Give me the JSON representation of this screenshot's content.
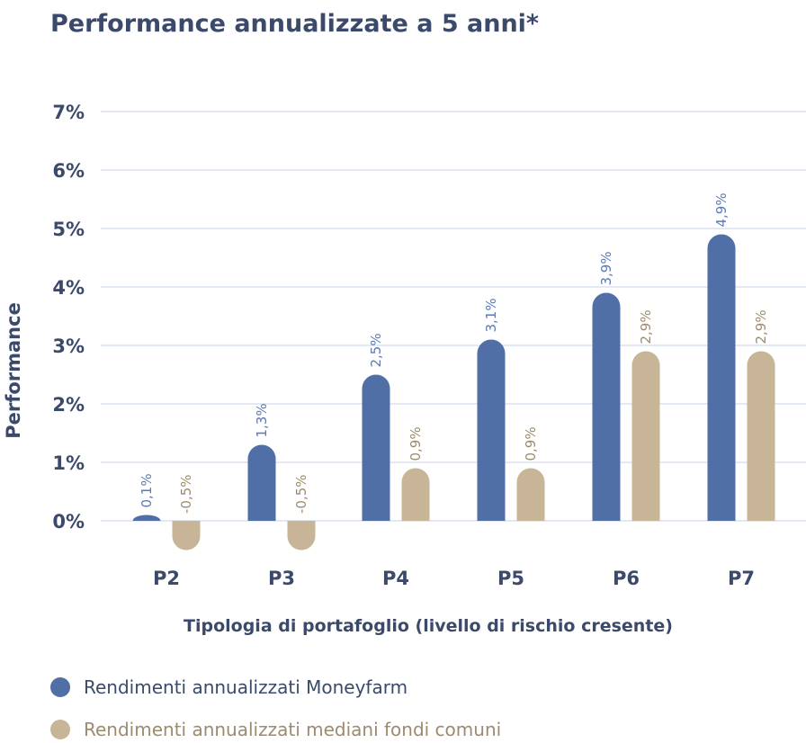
{
  "chart_data": {
    "type": "bar",
    "title": "Performance annualizzate a 5 anni*",
    "xlabel": "Tipologia di portafoglio (livello di rischio cresente)",
    "ylabel": "Performance",
    "categories": [
      "P2",
      "P3",
      "P4",
      "P5",
      "P6",
      "P7"
    ],
    "ylim": [
      0,
      7
    ],
    "yticks": [
      0,
      1,
      2,
      3,
      4,
      5,
      6,
      7
    ],
    "ytick_labels": [
      "0%",
      "1%",
      "2%",
      "3%",
      "4%",
      "5%",
      "6%",
      "7%"
    ],
    "grid": true,
    "legend_position": "bottom-left",
    "series": [
      {
        "name": "Rendimenti annualizzati Moneyfarm",
        "color": "#4f6fa6",
        "label_color": "#5b7bb3",
        "values": [
          0.1,
          1.3,
          2.5,
          3.1,
          3.9,
          4.9
        ],
        "labels": [
          "0,1%",
          "1,3%",
          "2,5%",
          "3,1%",
          "3,9%",
          "4,9%"
        ]
      },
      {
        "name": "Rendimenti annualizzati mediani fondi comuni",
        "color": "#c8b598",
        "label_color": "#9e8a6e",
        "values": [
          -0.5,
          -0.5,
          0.9,
          0.9,
          2.9,
          2.9
        ],
        "labels": [
          "-0,5%",
          "-0,5%",
          "0,9%",
          "0,9%",
          "2,9%",
          "2,9%"
        ]
      }
    ]
  }
}
